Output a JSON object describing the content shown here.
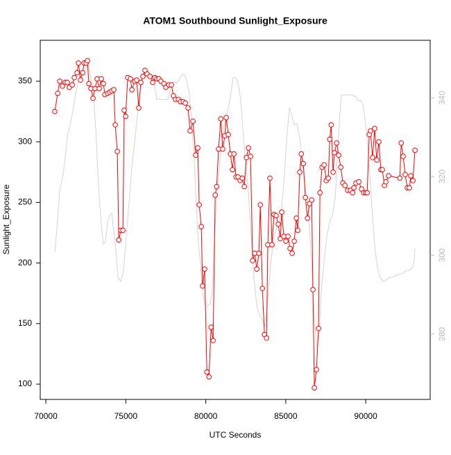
{
  "chart_data": {
    "type": "line",
    "title": "ATOM1 Southbound Sunlight_Exposure",
    "x_label": "UTC Seconds",
    "y_label": "Sunlight_Exposure",
    "xlim": [
      69650,
      94030
    ],
    "xticks": [
      70000,
      75000,
      80000,
      85000,
      90000
    ],
    "ylim": [
      87.4,
      383.8
    ],
    "yticks": [
      100,
      150,
      200,
      250,
      300,
      350
    ],
    "y2lim": [
      263.4,
      354.6
    ],
    "y2ticks": [
      280,
      300,
      320,
      340
    ],
    "series": [
      {
        "color": "#d3d3d3",
        "axis": "y2",
        "markers": false,
        "x": [
          70560,
          70690,
          70870,
          71040,
          71170,
          71350,
          71520,
          71650,
          71820,
          72000,
          72170,
          72340,
          72520,
          72650,
          72780,
          72950,
          73120,
          73300,
          73470,
          73600,
          73730,
          73860,
          73990,
          74120,
          74250,
          74380,
          74510,
          74690,
          74860,
          75030,
          75210,
          75380,
          75550,
          75730,
          75900,
          76070,
          76250,
          76420,
          76590,
          76770,
          76940,
          77110,
          77370,
          77630,
          77810,
          77980,
          78160,
          78330,
          78500,
          78630,
          78760,
          78940,
          79110,
          79280,
          79410,
          79540,
          79670,
          79800,
          79930,
          80110,
          80280,
          80410,
          80540,
          80670,
          80850,
          81020,
          81190,
          81370,
          81540,
          81710,
          81890,
          82060,
          82190,
          82320,
          82490,
          82670,
          82840,
          83010,
          83190,
          83360,
          83530,
          83710,
          83880,
          84060,
          84230,
          84400,
          84580,
          84750,
          84920,
          85100,
          85230,
          85360,
          85530,
          85700,
          85880,
          86050,
          86220,
          86400,
          86570,
          86700,
          86830,
          86960,
          87090,
          87220,
          87400,
          87570,
          87740,
          87920,
          88090,
          88220,
          88350,
          88480,
          88650,
          88910,
          89170,
          89390,
          89520,
          89700,
          89870,
          90040,
          90220,
          90390,
          90560,
          90740,
          90910,
          91080,
          91260,
          91430,
          91780,
          92080,
          92300,
          92510,
          92730,
          92910,
          93040,
          93080
        ],
        "values": [
          300.8,
          306.6,
          316.4,
          319.9,
          322.9,
          330.5,
          333.1,
          335.8,
          340.2,
          343.7,
          345.3,
          345.5,
          347.9,
          348.3,
          345.5,
          342.5,
          332.1,
          317.2,
          307.5,
          302.9,
          303.4,
          308.4,
          310.2,
          310.7,
          305.8,
          301.4,
          294.3,
          293.4,
          296.1,
          304.9,
          313.7,
          322.5,
          328.7,
          335.8,
          341.9,
          345.5,
          347.2,
          346.4,
          345.8,
          344.1,
          339.6,
          339.6,
          339.5,
          339.6,
          342.3,
          344.1,
          343.7,
          344.6,
          345.8,
          346.0,
          345.1,
          341.9,
          334.9,
          324.3,
          312.6,
          303.1,
          297.8,
          290.8,
          287.6,
          287.1,
          287.6,
          291.6,
          304.0,
          313.7,
          322.5,
          329.6,
          334.0,
          336.6,
          340.2,
          345.1,
          345.1,
          342.8,
          339.3,
          332.2,
          323.4,
          315.5,
          304.9,
          294.3,
          287.2,
          284.6,
          283.7,
          281.9,
          289.0,
          297.8,
          304.0,
          306.6,
          307.5,
          312.0,
          320.8,
          331.4,
          337.5,
          335.8,
          333.1,
          333.5,
          329.6,
          323.4,
          317.2,
          312.0,
          301.4,
          290.8,
          281.9,
          276.6,
          280.2,
          290.8,
          298.7,
          304.9,
          308.4,
          310.2,
          314.6,
          324.3,
          334.0,
          340.7,
          340.7,
          340.7,
          340.7,
          340.2,
          339.3,
          339.3,
          337.5,
          331.4,
          322.5,
          312.0,
          302.2,
          296.9,
          294.3,
          293.4,
          293.6,
          294.3,
          294.6,
          295.2,
          295.4,
          296.1,
          296.1,
          296.9,
          298.7,
          301.7
        ]
      },
      {
        "color": "#ff0000",
        "axis": "y",
        "markers": true,
        "x": [
          70560,
          70740,
          70870,
          71040,
          71210,
          71340,
          71470,
          71650,
          71780,
          71950,
          72040,
          72170,
          72300,
          72390,
          72520,
          72600,
          72690,
          72820,
          72950,
          73080,
          73210,
          73340,
          73470,
          73600,
          73690,
          73860,
          73990,
          74120,
          74250,
          74340,
          74470,
          74560,
          74690,
          74820,
          74900,
          74990,
          75120,
          75290,
          75380,
          75550,
          75680,
          75810,
          75940,
          76070,
          76200,
          76330,
          76510,
          76680,
          76810,
          76940,
          77070,
          77200,
          77380,
          77510,
          77680,
          77850,
          77980,
          78110,
          78290,
          78420,
          78590,
          78720,
          78890,
          79020,
          79200,
          79370,
          79500,
          79590,
          79720,
          79800,
          79930,
          80070,
          80200,
          80330,
          80460,
          80590,
          80680,
          80800,
          80940,
          81060,
          81190,
          81280,
          81410,
          81540,
          81670,
          81760,
          81890,
          82020,
          82150,
          82280,
          82410,
          82540,
          82670,
          82800,
          82930,
          83060,
          83190,
          83320,
          83410,
          83540,
          83670,
          83800,
          83880,
          84010,
          84140,
          84270,
          84400,
          84530,
          84660,
          84750,
          84880,
          85010,
          85140,
          85270,
          85400,
          85530,
          85660,
          85750,
          85880,
          85970,
          86100,
          86230,
          86360,
          86490,
          86620,
          86700,
          86790,
          86920,
          87050,
          87140,
          87270,
          87400,
          87530,
          87660,
          87750,
          87840,
          87960,
          88050,
          88180,
          88310,
          88440,
          88570,
          88700,
          88870,
          89050,
          89180,
          89260,
          89390,
          89570,
          89740,
          89870,
          90000,
          90090,
          90220,
          90300,
          90430,
          90560,
          90690,
          90820,
          90950,
          91040,
          91170,
          91260,
          91430,
          92130,
          92220,
          92340,
          92470,
          92600,
          92730,
          92820,
          92950,
          93080
        ],
        "values": [
          325,
          340,
          350,
          346,
          349,
          349,
          345,
          347,
          353,
          357,
          365,
          351,
          357,
          365,
          365,
          367,
          348,
          344,
          336,
          344,
          352,
          344,
          352,
          348,
          339,
          340,
          341,
          342,
          343,
          314,
          292,
          219,
          227,
          227,
          326,
          321,
          353,
          352,
          343,
          350,
          351,
          328,
          349,
          354,
          359,
          356,
          354,
          349,
          353,
          352,
          352,
          350,
          348,
          345,
          347,
          347,
          338,
          335,
          335,
          333,
          333,
          332,
          328,
          309,
          317,
          289,
          295,
          248,
          230,
          181,
          195,
          110,
          106,
          147,
          136,
          256,
          263,
          294,
          319,
          294,
          305,
          320,
          306,
          290,
          277,
          290,
          271,
          271,
          268,
          270,
          263,
          287,
          295,
          288,
          202,
          208,
          195,
          208,
          248,
          179,
          141,
          138,
          215,
          270,
          215,
          240,
          239,
          232,
          220,
          242,
          222,
          218,
          222,
          212,
          208,
          218,
          237,
          227,
          275,
          290,
          282,
          254,
          237,
          249,
          252,
          178,
          97,
          112,
          146,
          258,
          279,
          281,
          268,
          270,
          302,
          314,
          275,
          291,
          299,
          289,
          279,
          266,
          264,
          260,
          260,
          258,
          262,
          266,
          267,
          261,
          258,
          258,
          258,
          306,
          309,
          287,
          311,
          285,
          300,
          277,
          277,
          264,
          267,
          272,
          270,
          299,
          288,
          273,
          262,
          262,
          272,
          268,
          293
        ]
      }
    ]
  }
}
